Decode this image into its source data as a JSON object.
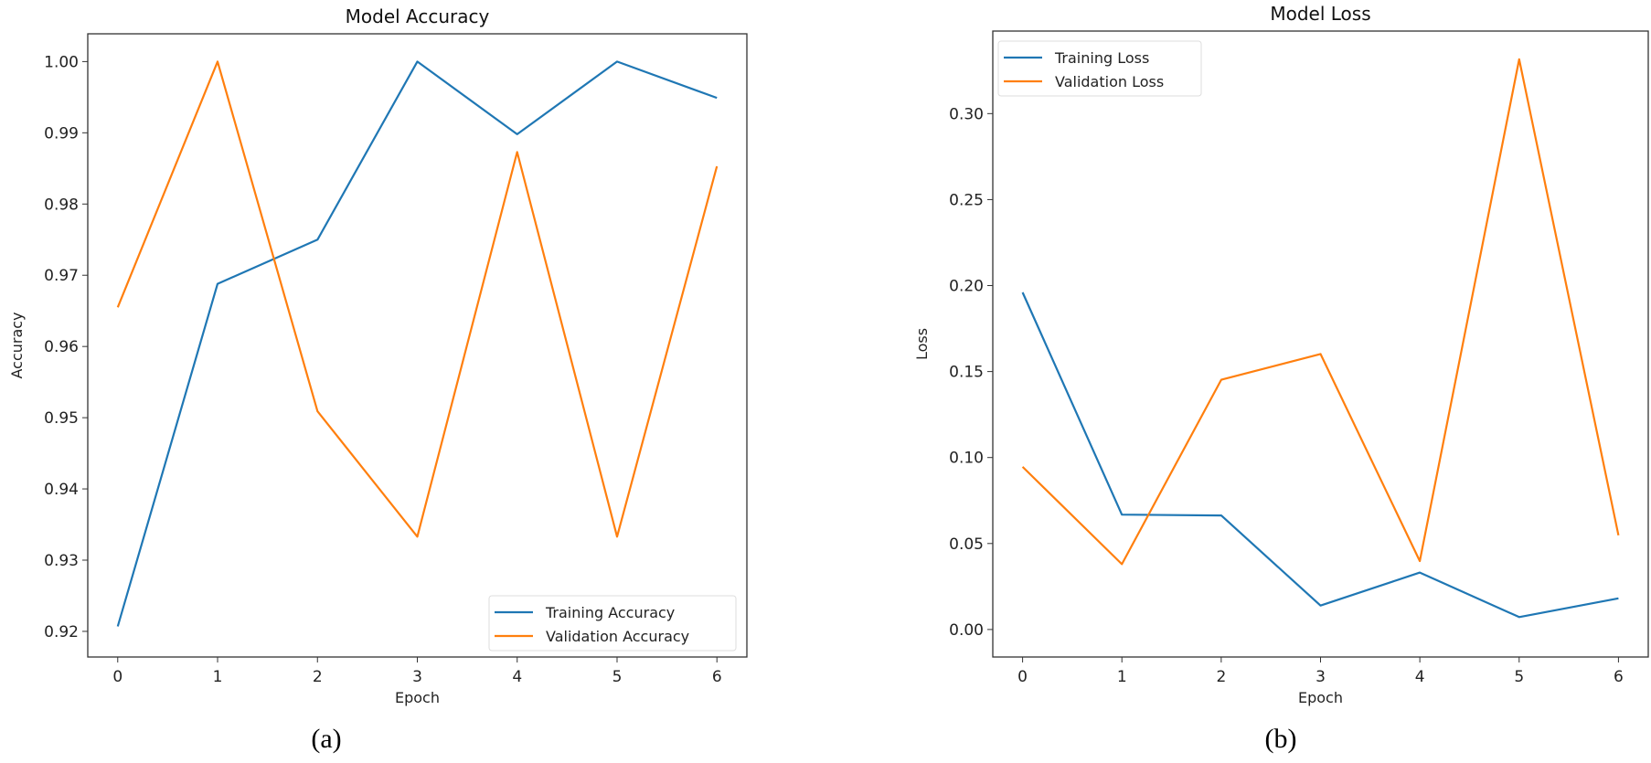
{
  "chart_data": [
    {
      "type": "line",
      "title": "Model Accuracy",
      "xlabel": "Epoch",
      "ylabel": "Accuracy",
      "caption": "(a)",
      "x": [
        0,
        1,
        2,
        3,
        4,
        5,
        6
      ],
      "xticks": [
        "0",
        "1",
        "2",
        "3",
        "4",
        "5",
        "6"
      ],
      "yticks": [
        "0.92",
        "0.93",
        "0.94",
        "0.95",
        "0.96",
        "0.97",
        "0.98",
        "0.99",
        "1.00"
      ],
      "ytick_values": [
        0.92,
        0.93,
        0.94,
        0.95,
        0.96,
        0.97,
        0.98,
        0.99,
        1.0
      ],
      "ylim": [
        0.9164,
        1.0039
      ],
      "xlim": [
        -0.3,
        6.3
      ],
      "legend_position": "lower-right",
      "series": [
        {
          "name": "Training Accuracy",
          "color": "#1f77b4",
          "values": [
            0.9207,
            0.9688,
            0.975,
            1.0,
            0.9898,
            1.0,
            0.9949
          ]
        },
        {
          "name": "Validation Accuracy",
          "color": "#ff7f0e",
          "values": [
            0.9655,
            1.0,
            0.9509,
            0.9333,
            0.9873,
            0.9333,
            0.9853
          ]
        }
      ]
    },
    {
      "type": "line",
      "title": "Model Loss",
      "xlabel": "Epoch",
      "ylabel": "Loss",
      "caption": "(b)",
      "x": [
        0,
        1,
        2,
        3,
        4,
        5,
        6
      ],
      "xticks": [
        "0",
        "1",
        "2",
        "3",
        "4",
        "5",
        "6"
      ],
      "yticks": [
        "0.00",
        "0.05",
        "0.10",
        "0.15",
        "0.20",
        "0.25",
        "0.30"
      ],
      "ytick_values": [
        0,
        0.05,
        0.1,
        0.15,
        0.2,
        0.25,
        0.3
      ],
      "ylim": [
        -0.016,
        0.348
      ],
      "xlim": [
        -0.3,
        6.3
      ],
      "legend_position": "upper-left",
      "series": [
        {
          "name": "Training Loss",
          "color": "#1f77b4",
          "values": [
            0.196,
            0.0668,
            0.0663,
            0.0139,
            0.0331,
            0.0072,
            0.0181
          ]
        },
        {
          "name": "Validation Loss",
          "color": "#ff7f0e",
          "values": [
            0.0946,
            0.038,
            0.1452,
            0.1602,
            0.0398,
            0.3316,
            0.0548
          ]
        }
      ]
    }
  ]
}
